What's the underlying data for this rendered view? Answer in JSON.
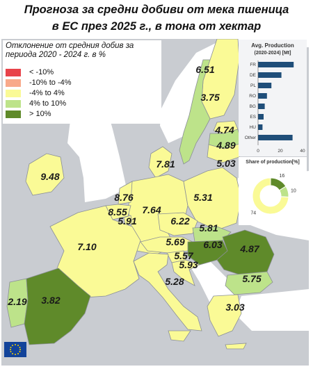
{
  "title": {
    "line1": "Прогноза за средни добиви от мека пшеница",
    "line2": "в ЕС през 2025 г., в тона от хектар"
  },
  "legend": {
    "title_line1": "Отклонение от средния добив за",
    "title_line2": "периода 2020 - 2024 г. в %%",
    "items": [
      {
        "label": "< -10%",
        "color": "#e8434a"
      },
      {
        "label": "-10% to -4%",
        "color": "#f8a98a"
      },
      {
        "label": "-4% to 4%",
        "color": "#fafa96"
      },
      {
        "label": "4% to 10%",
        "color": "#bde38a"
      },
      {
        "label": "> 10%",
        "color": "#5f8a2a"
      }
    ]
  },
  "countries": [
    {
      "code": "FI",
      "value": "6.51",
      "class": "-4% to 4%"
    },
    {
      "code": "SE",
      "value": "3.75",
      "class": "4% to 10%"
    },
    {
      "code": "EE",
      "value": "4.74",
      "class": "-4% to 4%"
    },
    {
      "code": "LV",
      "value": "4.89",
      "class": "4% to 10%"
    },
    {
      "code": "LT",
      "value": "5.03",
      "class": "-4% to 4%"
    },
    {
      "code": "IE",
      "value": "9.48",
      "class": "-4% to 4%"
    },
    {
      "code": "DK",
      "value": "7.81",
      "class": "-4% to 4%"
    },
    {
      "code": "NL",
      "value": "8.76",
      "class": "-4% to 4%"
    },
    {
      "code": "BE",
      "value": "8.55",
      "class": "-4% to 4%"
    },
    {
      "code": "LU",
      "value": "5.91",
      "class": "-4% to 4%"
    },
    {
      "code": "DE",
      "value": "7.64",
      "class": "-4% to 4%"
    },
    {
      "code": "PL",
      "value": "5.31",
      "class": "-4% to 4%"
    },
    {
      "code": "CZ",
      "value": "6.22",
      "class": "-4% to 4%"
    },
    {
      "code": "SK",
      "value": "5.81",
      "class": "4% to 10%"
    },
    {
      "code": "FR",
      "value": "7.10",
      "class": "-4% to 4%"
    },
    {
      "code": "AT",
      "value": "5.69",
      "class": "-4% to 4%"
    },
    {
      "code": "HU",
      "value": "6.03",
      "class": "> 10%"
    },
    {
      "code": "RO",
      "value": "4.87",
      "class": "> 10%"
    },
    {
      "code": "SI",
      "value": "5.57",
      "class": "-4% to 4%"
    },
    {
      "code": "HR",
      "value": "5.93",
      "class": "-4% to 4%"
    },
    {
      "code": "BG",
      "value": "5.75",
      "class": "4% to 10%"
    },
    {
      "code": "IT",
      "value": "5.28",
      "class": "-4% to 4%"
    },
    {
      "code": "PT",
      "value": "2.19",
      "class": "4% to 10%"
    },
    {
      "code": "ES",
      "value": "3.82",
      "class": "> 10%"
    },
    {
      "code": "GR",
      "value": "3.03",
      "class": "-4% to 4%"
    }
  ],
  "colors": {
    "sea": "#c9ccd1",
    "non_eu": "#ffffff",
    "border": "#8a8f96",
    "bar": "#1f4e79"
  },
  "production_chart": {
    "title_line1": "Avg. Production",
    "title_line2": "(2020-2024) [Mt]",
    "type": "bar",
    "categories": [
      "FR",
      "DE",
      "PL",
      "RO",
      "BG",
      "ES",
      "HU",
      "Other"
    ],
    "values": [
      32,
      21,
      12,
      8,
      6,
      5,
      4,
      31
    ],
    "xticks": [
      "0",
      "20",
      "40"
    ],
    "xlim": [
      0,
      40
    ]
  },
  "share_chart": {
    "title": "Share of production[%]",
    "type": "pie",
    "slices": [
      {
        "label": "16",
        "value": 16,
        "color": "#5f8a2a"
      },
      {
        "label": "10",
        "value": 10,
        "color": "#bde38a"
      },
      {
        "label": "74",
        "value": 74,
        "color": "#fafa96"
      }
    ]
  },
  "chart_data": [
    {
      "type": "bar",
      "title": "Avg. Production (2020-2024) [Mt]",
      "categories": [
        "FR",
        "DE",
        "PL",
        "RO",
        "BG",
        "ES",
        "HU",
        "Other"
      ],
      "values": [
        32,
        21,
        12,
        8,
        6,
        5,
        4,
        31
      ],
      "xlim": [
        0,
        40
      ]
    },
    {
      "type": "pie",
      "title": "Share of production[%]",
      "categories": [
        "16",
        "10",
        "74"
      ],
      "values": [
        16,
        10,
        74
      ]
    }
  ]
}
